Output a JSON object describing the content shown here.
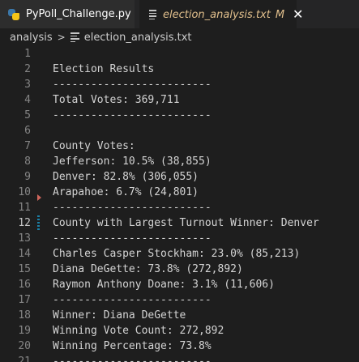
{
  "tabs": [
    {
      "label": "PyPoll_Challenge.py",
      "icon": "python-icon"
    },
    {
      "label": "election_analysis.txt",
      "icon": "text-file-icon",
      "modified": "M",
      "close": "✕"
    }
  ],
  "breadcrumb": {
    "folder": "analysis",
    "separator": ">",
    "file": "election_analysis.txt"
  },
  "editor": {
    "lines": [
      {
        "num": "1",
        "text": ""
      },
      {
        "num": "2",
        "text": "Election Results"
      },
      {
        "num": "3",
        "text": "-------------------------"
      },
      {
        "num": "4",
        "text": "Total Votes: 369,711"
      },
      {
        "num": "5",
        "text": "-------------------------"
      },
      {
        "num": "6",
        "text": ""
      },
      {
        "num": "7",
        "text": "County Votes:"
      },
      {
        "num": "8",
        "text": "Jefferson: 10.5% (38,855)"
      },
      {
        "num": "9",
        "text": "Denver: 82.8% (306,055)"
      },
      {
        "num": "10",
        "text": "Arapahoe: 6.7% (24,801)"
      },
      {
        "num": "11",
        "text": "-------------------------"
      },
      {
        "num": "12",
        "text": "County with Largest Turnout Winner: Denver"
      },
      {
        "num": "13",
        "text": "-------------------------"
      },
      {
        "num": "14",
        "text": "Charles Casper Stockham: 23.0% (85,213)"
      },
      {
        "num": "15",
        "text": "Diana DeGette: 73.8% (272,892)"
      },
      {
        "num": "16",
        "text": "Raymon Anthony Doane: 3.1% (11,606)"
      },
      {
        "num": "17",
        "text": "-------------------------"
      },
      {
        "num": "18",
        "text": "Winner: Diana DeGette"
      },
      {
        "num": "19",
        "text": "Winning Vote Count: 272,892"
      },
      {
        "num": "20",
        "text": "Winning Percentage: 73.8%"
      },
      {
        "num": "21",
        "text": "-------------------------"
      }
    ]
  },
  "colors": {
    "modified_tab": "#e2c08d",
    "line_number": "#858585",
    "deleted_marker": "#d0665c",
    "modified_marker": "#1b81a8"
  }
}
